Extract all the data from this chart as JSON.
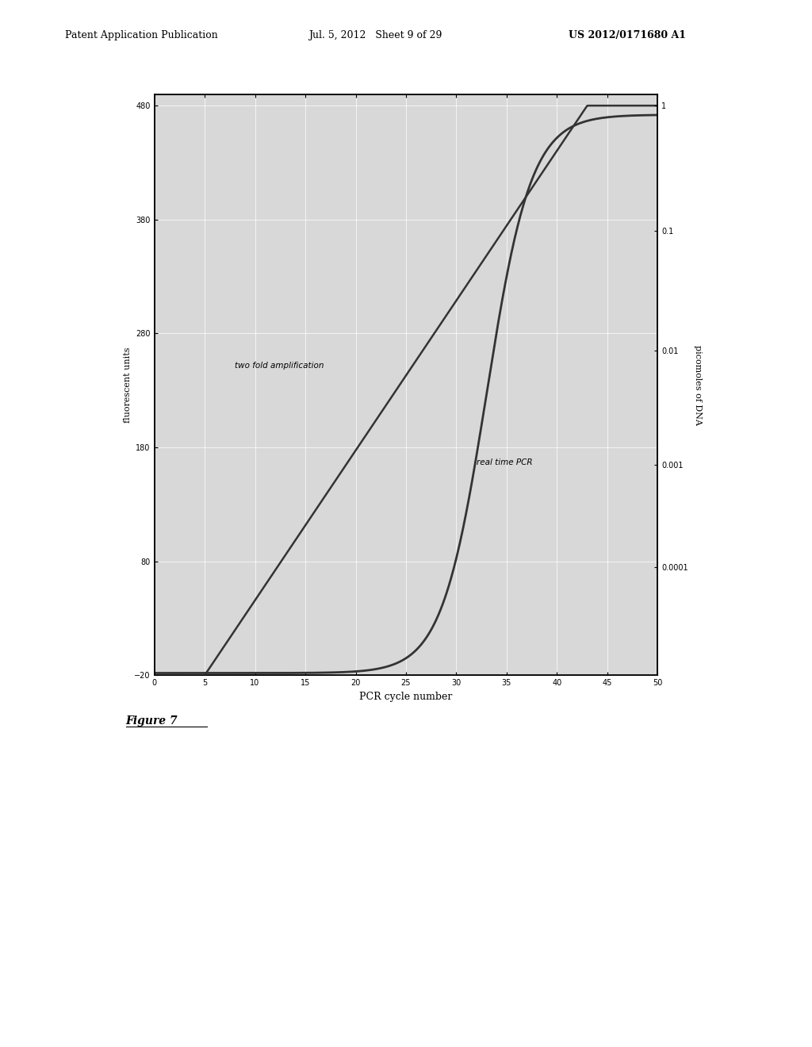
{
  "header_left": "Patent Application Publication",
  "header_mid": "Jul. 5, 2012   Sheet 9 of 29",
  "header_right": "US 2012/0171680 A1",
  "figure_caption": "Figure 7",
  "chart": {
    "xlabel": "PCR cycle number",
    "ylabel_left": "fluorescent units",
    "ylabel_right": "picomoles of DNA",
    "xlim": [
      0,
      50
    ],
    "ylim_left": [
      -20,
      490
    ],
    "yticks_left": [
      -20,
      80,
      180,
      280,
      380,
      480
    ],
    "xticks": [
      0,
      5,
      10,
      15,
      20,
      25,
      30,
      35,
      40,
      45,
      50
    ],
    "right_ytick_labels": [
      "1",
      "0.1",
      "0.01",
      "0.001",
      "0.0001"
    ],
    "right_positions": [
      480,
      370,
      265,
      165,
      75
    ],
    "label_twofold": "two fold amplification",
    "label_realtime": "real time PCR",
    "bg_color": "#d8d8d8",
    "line_color": "#333333",
    "grid_color": "#ffffff"
  }
}
